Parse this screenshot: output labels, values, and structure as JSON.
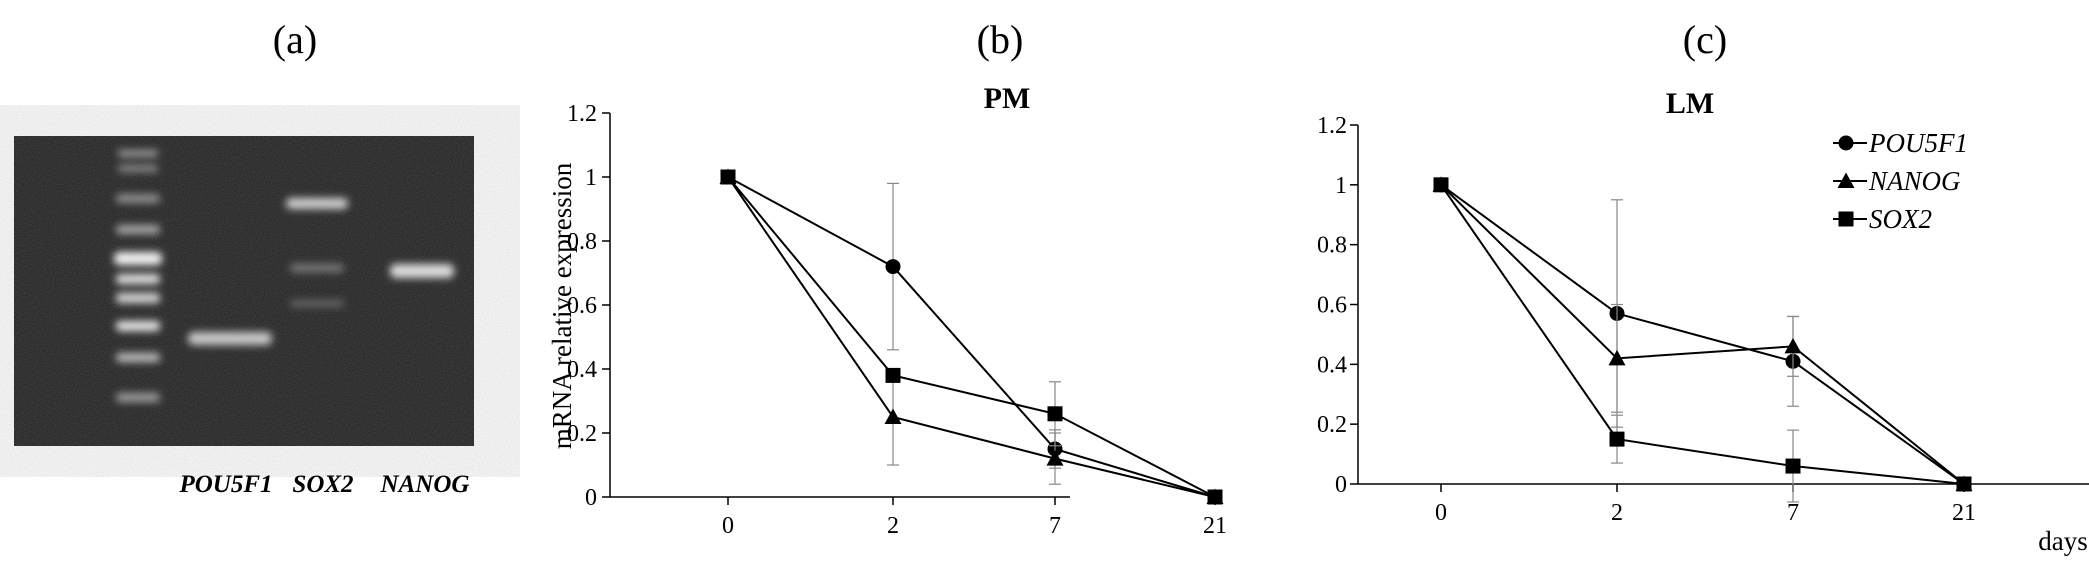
{
  "panel_labels": [
    "(a)",
    "(b)",
    "(c)"
  ],
  "gel": {
    "lane_labels": [
      "POU5F1",
      "SOX2",
      "NANOG"
    ]
  },
  "axes": {
    "x_tick_labels": [
      "0",
      "2",
      "7",
      "21"
    ],
    "y_tick_labels": [
      "0",
      "0.2",
      "0.4",
      "0.6",
      "0.8",
      "1",
      "1.2"
    ],
    "ylabel": "mRNA relative expression",
    "x_unit": "days"
  },
  "legend": {
    "entries": [
      {
        "name": "POU5F1",
        "marker": "circle"
      },
      {
        "name": "NANOG",
        "marker": "triangle"
      },
      {
        "name": "SOX2",
        "marker": "square"
      }
    ]
  },
  "chart_data": [
    {
      "type": "line",
      "title": "PM",
      "x": [
        "0",
        "2",
        "7",
        "21"
      ],
      "ylabel": "mRNA relative expression",
      "ylim": [
        0,
        1.2
      ],
      "series": [
        {
          "name": "POU5F1",
          "marker": "circle",
          "values": [
            1,
            0.72,
            0.15,
            0
          ],
          "errors": [
            0,
            0.26,
            0.06,
            0
          ]
        },
        {
          "name": "NANOG",
          "marker": "triangle",
          "values": [
            1,
            0.25,
            0.12,
            0
          ],
          "errors": [
            0,
            0.15,
            0.08,
            0
          ]
        },
        {
          "name": "SOX2",
          "marker": "square",
          "values": [
            1,
            0.38,
            0.26,
            0
          ],
          "errors": [
            0,
            0,
            0.1,
            0
          ]
        }
      ]
    },
    {
      "type": "line",
      "title": "LM",
      "x": [
        "0",
        "2",
        "7",
        "21"
      ],
      "xlabel": "days",
      "ylim": [
        0,
        1.2
      ],
      "series": [
        {
          "name": "POU5F1",
          "marker": "circle",
          "values": [
            1,
            0.57,
            0.41,
            0
          ],
          "errors": [
            0,
            0.38,
            0.15,
            0
          ]
        },
        {
          "name": "NANOG",
          "marker": "triangle",
          "values": [
            1,
            0.42,
            0.46,
            0
          ],
          "errors": [
            0,
            0.18,
            0.1,
            0
          ]
        },
        {
          "name": "SOX2",
          "marker": "square",
          "values": [
            1,
            0.15,
            0.06,
            0
          ],
          "errors": [
            0,
            0.08,
            0.12,
            0
          ]
        }
      ],
      "legend_position": "top-right"
    }
  ]
}
